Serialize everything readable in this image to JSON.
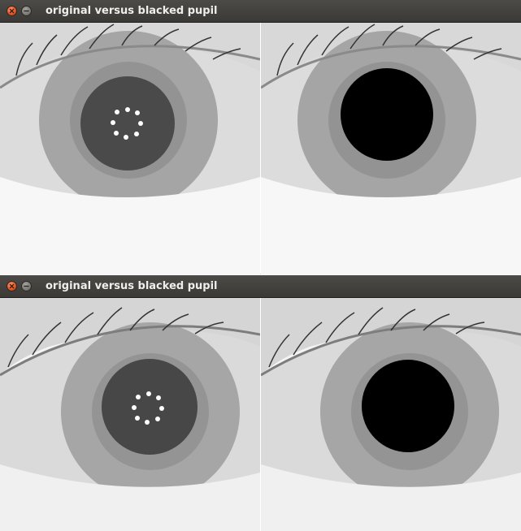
{
  "windows": [
    {
      "title": "original versus blacked pupil",
      "buttons": {
        "close_icon": "close-icon",
        "minimize_icon": "minimize-icon"
      },
      "panels": [
        {
          "name": "original",
          "pupil": "dark-with-reflections"
        },
        {
          "name": "blacked",
          "pupil": "solid-black"
        }
      ]
    },
    {
      "title": "original versus blacked pupil",
      "buttons": {
        "close_icon": "close-icon",
        "minimize_icon": "minimize-icon"
      },
      "panels": [
        {
          "name": "original",
          "pupil": "dark-with-reflections"
        },
        {
          "name": "blacked",
          "pupil": "solid-black"
        }
      ]
    }
  ],
  "colors": {
    "titlebar": "#3f3e3a",
    "title_text": "#eeeeec",
    "close_button": "#e0501f",
    "sclera": "#dcdcdc",
    "iris": "#a3a3a3",
    "pupil_original": "#4a4a4a",
    "pupil_blacked": "#000000"
  }
}
